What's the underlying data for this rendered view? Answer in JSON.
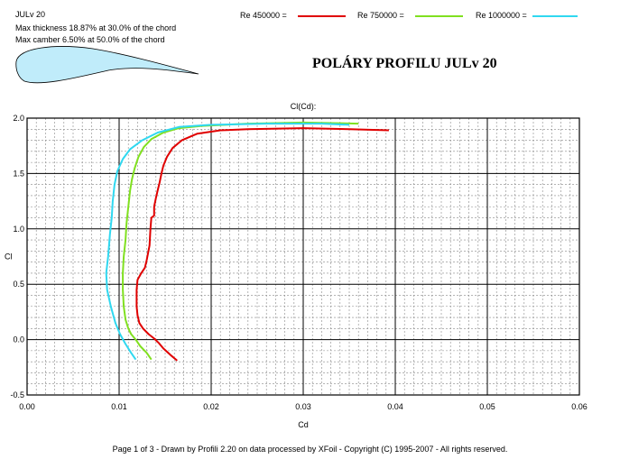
{
  "profile": {
    "name": "JULv 20",
    "thickness_text": "Max thickness 18.87% at 30.0% of the chord",
    "camber_text": "Max camber 6.50% at 50.0% of the chord"
  },
  "title": "POLÁRY  PROFILU  JULv 20",
  "footer": "Page 1 of 3   -   Drawn by Profili 2.20 on data processed by  XFoil - Copyright (C) 1995-2007 - All rights reserved.",
  "colors": {
    "re450000": "#e00000",
    "re750000": "#80e020",
    "re1000000": "#30d8f0",
    "airfoil_fill": "#c0ecfa"
  },
  "chart_data": {
    "type": "line",
    "title": "Cl(Cd):",
    "xlabel": "Cd",
    "ylabel": "Cl",
    "xlim": [
      0.0,
      0.06
    ],
    "ylim": [
      -0.5,
      2.0
    ],
    "xticks": [
      "0.00",
      "0.01",
      "0.02",
      "0.03",
      "0.04",
      "0.05",
      "0.06"
    ],
    "yticks": [
      "-0.5",
      "0.0",
      "0.5",
      "1.0",
      "1.5",
      "2.0"
    ],
    "grid": true,
    "legend_position": "top",
    "series": [
      {
        "name": "Re 450000 =",
        "color": "#e00000",
        "points": [
          [
            0.0163,
            -0.19
          ],
          [
            0.0156,
            -0.14
          ],
          [
            0.0148,
            -0.08
          ],
          [
            0.0143,
            -0.03
          ],
          [
            0.0138,
            0.01
          ],
          [
            0.0132,
            0.05
          ],
          [
            0.0126,
            0.1
          ],
          [
            0.0122,
            0.15
          ],
          [
            0.012,
            0.22
          ],
          [
            0.0119,
            0.3
          ],
          [
            0.0119,
            0.45
          ],
          [
            0.012,
            0.54
          ],
          [
            0.0124,
            0.6
          ],
          [
            0.0128,
            0.65
          ],
          [
            0.013,
            0.72
          ],
          [
            0.0133,
            0.85
          ],
          [
            0.0134,
            1.0
          ],
          [
            0.0135,
            1.1
          ],
          [
            0.0138,
            1.12
          ],
          [
            0.0138,
            1.2
          ],
          [
            0.014,
            1.28
          ],
          [
            0.0142,
            1.35
          ],
          [
            0.0144,
            1.42
          ],
          [
            0.0146,
            1.5
          ],
          [
            0.0148,
            1.57
          ],
          [
            0.0152,
            1.65
          ],
          [
            0.0158,
            1.73
          ],
          [
            0.0168,
            1.8
          ],
          [
            0.0185,
            1.86
          ],
          [
            0.021,
            1.89
          ],
          [
            0.024,
            1.9
          ],
          [
            0.03,
            1.91
          ],
          [
            0.035,
            1.9
          ],
          [
            0.0393,
            1.89
          ]
        ]
      },
      {
        "name": "Re 750000 =",
        "color": "#80e020",
        "points": [
          [
            0.0135,
            -0.18
          ],
          [
            0.013,
            -0.12
          ],
          [
            0.0123,
            -0.06
          ],
          [
            0.0118,
            0.0
          ],
          [
            0.0113,
            0.05
          ],
          [
            0.011,
            0.1
          ],
          [
            0.0107,
            0.18
          ],
          [
            0.0105,
            0.3
          ],
          [
            0.0104,
            0.45
          ],
          [
            0.0104,
            0.6
          ],
          [
            0.0105,
            0.75
          ],
          [
            0.0107,
            0.9
          ],
          [
            0.0108,
            1.05
          ],
          [
            0.011,
            1.2
          ],
          [
            0.0112,
            1.35
          ],
          [
            0.0114,
            1.45
          ],
          [
            0.0117,
            1.55
          ],
          [
            0.0121,
            1.65
          ],
          [
            0.0127,
            1.74
          ],
          [
            0.0135,
            1.81
          ],
          [
            0.0148,
            1.87
          ],
          [
            0.0165,
            1.91
          ],
          [
            0.019,
            1.93
          ],
          [
            0.024,
            1.95
          ],
          [
            0.03,
            1.96
          ],
          [
            0.036,
            1.95
          ]
        ]
      },
      {
        "name": "Re 1000000 =",
        "color": "#30d8f0",
        "points": [
          [
            0.0118,
            -0.18
          ],
          [
            0.0113,
            -0.12
          ],
          [
            0.0107,
            -0.04
          ],
          [
            0.0101,
            0.05
          ],
          [
            0.0096,
            0.15
          ],
          [
            0.0091,
            0.3
          ],
          [
            0.0087,
            0.45
          ],
          [
            0.0086,
            0.6
          ],
          [
            0.0088,
            0.75
          ],
          [
            0.009,
            0.95
          ],
          [
            0.0092,
            1.1
          ],
          [
            0.0093,
            1.25
          ],
          [
            0.0095,
            1.4
          ],
          [
            0.0098,
            1.52
          ],
          [
            0.0104,
            1.63
          ],
          [
            0.0112,
            1.72
          ],
          [
            0.0125,
            1.8
          ],
          [
            0.0142,
            1.87
          ],
          [
            0.0165,
            1.92
          ],
          [
            0.02,
            1.94
          ],
          [
            0.026,
            1.95
          ],
          [
            0.032,
            1.95
          ],
          [
            0.035,
            1.94
          ]
        ]
      }
    ]
  }
}
